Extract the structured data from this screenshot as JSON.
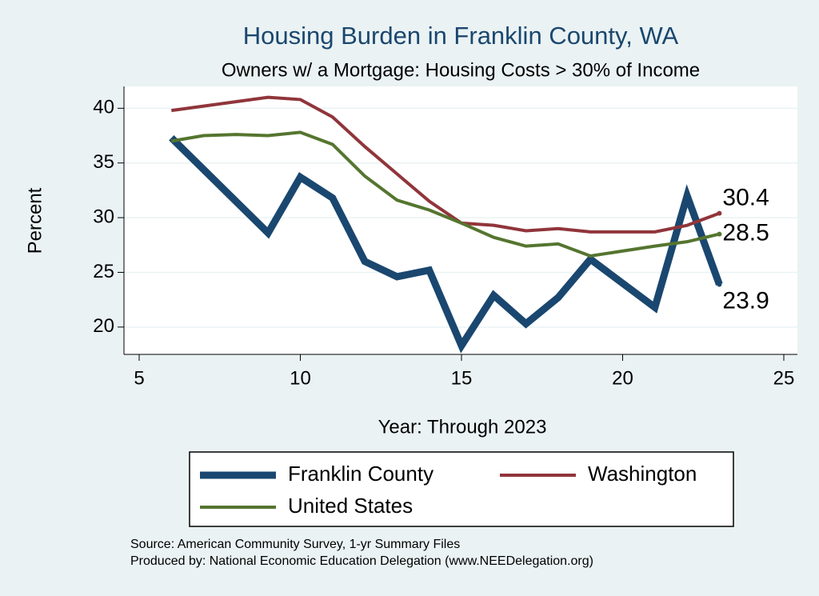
{
  "chart_data": {
    "type": "line",
    "title": "Housing Burden in Franklin County, WA",
    "subtitle": "Owners w/ a Mortgage: Housing Costs > 30% of Income",
    "x_label": "Year: Through 2023",
    "y_label": "Percent",
    "notes": [
      "Source: American Community Survey, 1-yr Summary Files",
      "Produced by: National Economic Education Delegation (www.NEEDelegation.org)"
    ],
    "xlim": [
      5,
      25
    ],
    "xticks": [
      5,
      10,
      15,
      20,
      25
    ],
    "ylim": [
      17.5,
      42
    ],
    "yticks": [
      20,
      25,
      30,
      35,
      40
    ],
    "grid": true,
    "label_last": true,
    "series": [
      {
        "name": "Franklin County",
        "color": "#1a476f",
        "width": 9,
        "x": [
          6,
          9,
          10,
          11,
          12,
          13,
          14,
          15,
          16,
          17,
          18,
          19,
          21,
          22,
          23
        ],
        "values": [
          37.3,
          28.6,
          33.7,
          31.8,
          26.0,
          24.6,
          25.2,
          18.3,
          22.9,
          20.3,
          22.7,
          26.2,
          21.8,
          32.0,
          23.9
        ]
      },
      {
        "name": "Washington",
        "color": "#90353b",
        "width": 4,
        "x": [
          6,
          7,
          8,
          9,
          10,
          11,
          12,
          13,
          14,
          15,
          16,
          17,
          18,
          19,
          21,
          22,
          23
        ],
        "values": [
          39.8,
          40.2,
          40.6,
          41.0,
          40.8,
          39.2,
          36.5,
          34.0,
          31.5,
          29.5,
          29.3,
          28.8,
          29.0,
          28.7,
          28.7,
          29.3,
          30.4
        ]
      },
      {
        "name": "United States",
        "color": "#55752f",
        "width": 4,
        "x": [
          6,
          7,
          8,
          9,
          10,
          11,
          12,
          13,
          14,
          15,
          16,
          17,
          18,
          19,
          21,
          22,
          23
        ],
        "values": [
          37.0,
          37.5,
          37.6,
          37.5,
          37.8,
          36.7,
          33.8,
          31.6,
          30.7,
          29.5,
          28.2,
          27.4,
          27.6,
          26.5,
          27.4,
          27.8,
          28.5
        ]
      }
    ]
  }
}
